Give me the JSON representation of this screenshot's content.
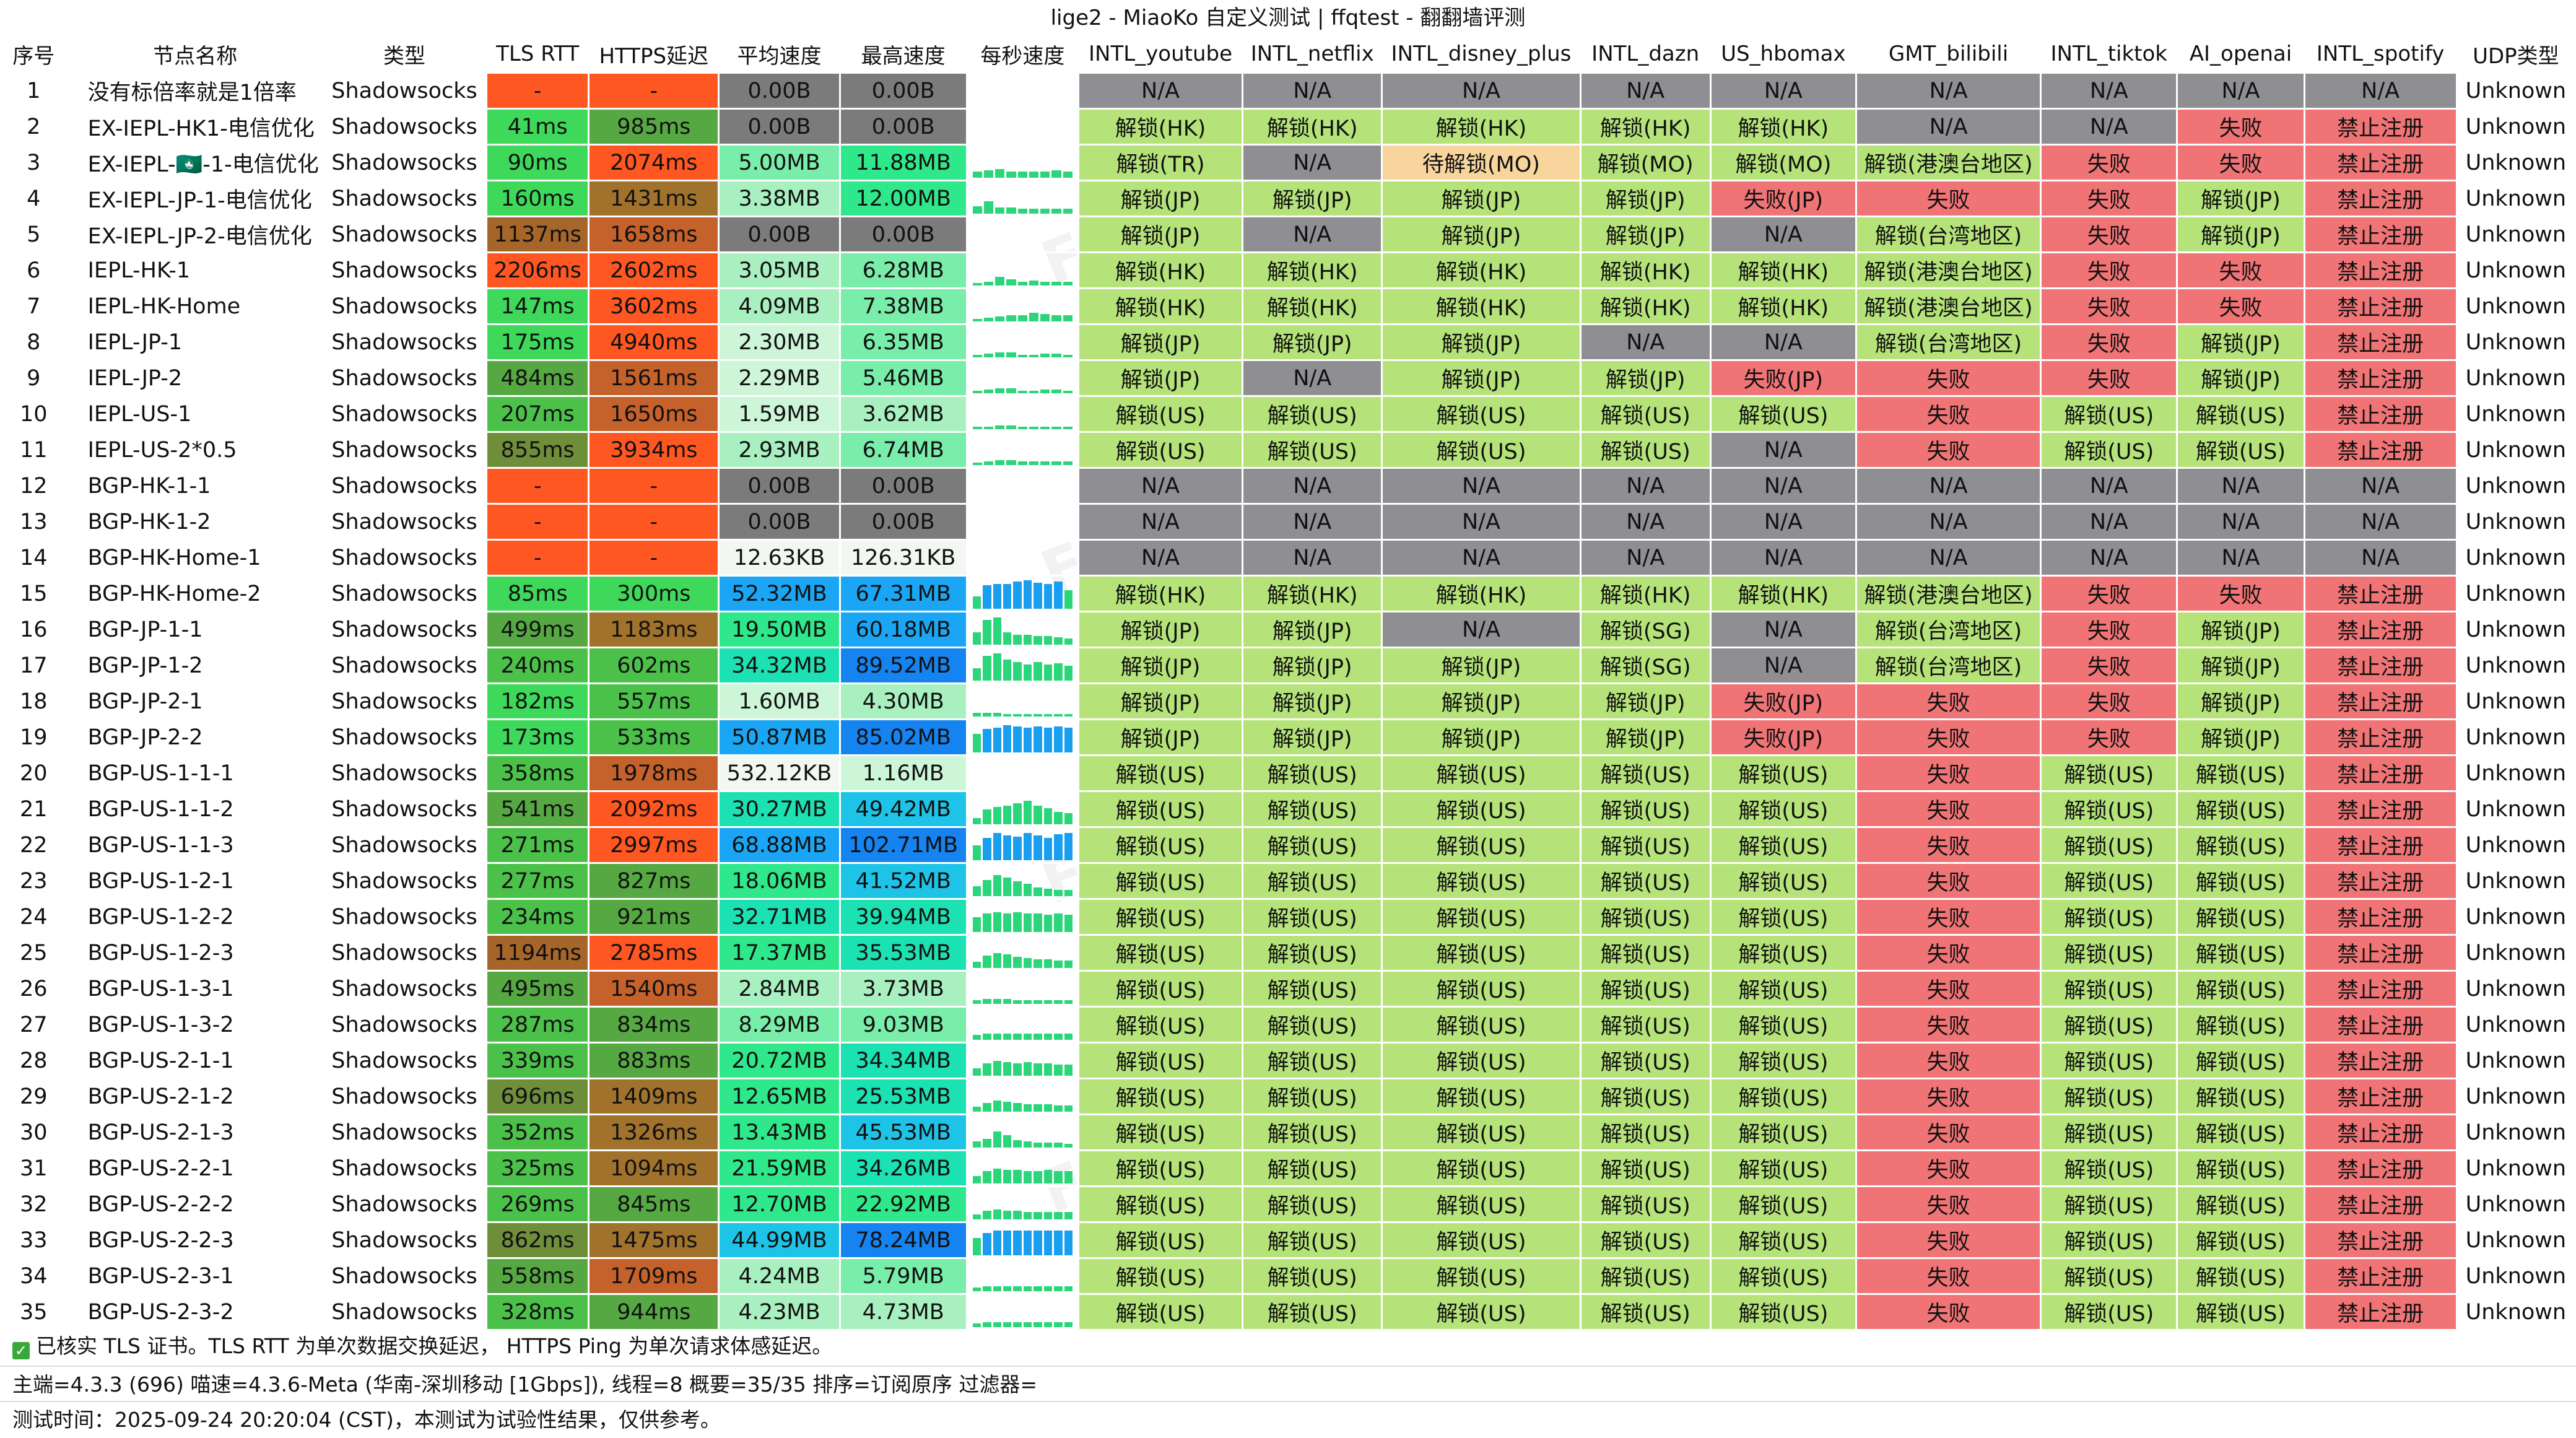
{
  "title": "lige2 - MiaoKo 自定义测试 | ffqtest - 翻翻墙评测",
  "watermark": "FFQ.LA Test Center",
  "columns": [
    "序号",
    "节点名称",
    "类型",
    "TLS RTT",
    "HTTPS延迟",
    "平均速度",
    "最高速度",
    "每秒速度",
    "INTL_youtube",
    "INTL_netflix",
    "INTL_disney_plus",
    "INTL_dazn",
    "US_hbomax",
    "GMT_bilibili",
    "INTL_tiktok",
    "AI_openai",
    "INTL_spotify",
    "UDP类型"
  ],
  "colors": {
    "unlock": "#b5e37a",
    "fail": "#f07476",
    "na": "#8e8e93",
    "pending": "#f9d59e",
    "speed_zero": "#7b7b7b",
    "rtt_dash": "#ff5722",
    "spark_green": "#2bd67b",
    "spark_blue": "#1a9ff0"
  },
  "rows": [
    {
      "id": "1",
      "name": "没有标倍率就是1倍率",
      "type": "Shadowsocks",
      "tls": "-",
      "https": "-",
      "avg": "0.00B",
      "max": "0.00B",
      "spark": [],
      "yt": "N/A",
      "nf": "N/A",
      "dp": "N/A",
      "dz": "N/A",
      "hbo": "N/A",
      "bili": "N/A",
      "tt": "N/A",
      "ai": "N/A",
      "sp": "N/A",
      "udp": "Unknown"
    },
    {
      "id": "2",
      "name": "EX-IEPL-HK1-电信优化",
      "type": "Shadowsocks",
      "tls": "41ms",
      "https": "985ms",
      "avg": "0.00B",
      "max": "0.00B",
      "spark": [],
      "yt": "解锁(HK)",
      "nf": "解锁(HK)",
      "dp": "解锁(HK)",
      "dz": "解锁(HK)",
      "hbo": "解锁(HK)",
      "bili": "N/A",
      "tt": "N/A",
      "ai": "失败",
      "sp": "禁止注册",
      "udp": "Unknown"
    },
    {
      "id": "3",
      "name": "EX-IEPL-🇲🇴-1-电信优化",
      "type": "Shadowsocks",
      "tls": "90ms",
      "https": "2074ms",
      "avg": "5.00MB",
      "max": "11.88MB",
      "spark": [
        10,
        12,
        14,
        10,
        10,
        10,
        10,
        12,
        10
      ],
      "yt": "解锁(TR)",
      "nf": "N/A",
      "dp": "待解锁(MO)",
      "dz": "解锁(MO)",
      "hbo": "解锁(MO)",
      "bili": "解锁(港澳台地区)",
      "tt": "失败",
      "ai": "失败",
      "sp": "禁止注册",
      "udp": "Unknown"
    },
    {
      "id": "4",
      "name": "EX-IEPL-JP-1-电信优化",
      "type": "Shadowsocks",
      "tls": "160ms",
      "https": "1431ms",
      "avg": "3.38MB",
      "max": "12.00MB",
      "spark": [
        12,
        20,
        10,
        10,
        8,
        8,
        8,
        8,
        8
      ],
      "yt": "解锁(JP)",
      "nf": "解锁(JP)",
      "dp": "解锁(JP)",
      "dz": "解锁(JP)",
      "hbo": "失败(JP)",
      "bili": "失败",
      "tt": "失败",
      "ai": "解锁(JP)",
      "sp": "禁止注册",
      "udp": "Unknown"
    },
    {
      "id": "5",
      "name": "EX-IEPL-JP-2-电信优化",
      "type": "Shadowsocks",
      "tls": "1137ms",
      "https": "1658ms",
      "avg": "0.00B",
      "max": "0.00B",
      "spark": [],
      "yt": "解锁(JP)",
      "nf": "N/A",
      "dp": "解锁(JP)",
      "dz": "解锁(JP)",
      "hbo": "N/A",
      "bili": "解锁(台湾地区)",
      "tt": "失败",
      "ai": "解锁(JP)",
      "sp": "禁止注册",
      "udp": "Unknown"
    },
    {
      "id": "6",
      "name": "IEPL-HK-1",
      "type": "Shadowsocks",
      "tls": "2206ms",
      "https": "2602ms",
      "avg": "3.05MB",
      "max": "6.28MB",
      "spark": [
        4,
        6,
        14,
        10,
        6,
        8,
        6,
        6,
        6
      ],
      "yt": "解锁(HK)",
      "nf": "解锁(HK)",
      "dp": "解锁(HK)",
      "dz": "解锁(HK)",
      "hbo": "解锁(HK)",
      "bili": "解锁(港澳台地区)",
      "tt": "失败",
      "ai": "失败",
      "sp": "禁止注册",
      "udp": "Unknown"
    },
    {
      "id": "7",
      "name": "IEPL-HK-Home",
      "type": "Shadowsocks",
      "tls": "147ms",
      "https": "3602ms",
      "avg": "4.09MB",
      "max": "7.38MB",
      "spark": [
        4,
        6,
        8,
        10,
        10,
        14,
        12,
        10,
        10
      ],
      "yt": "解锁(HK)",
      "nf": "解锁(HK)",
      "dp": "解锁(HK)",
      "dz": "解锁(HK)",
      "hbo": "解锁(HK)",
      "bili": "解锁(港澳台地区)",
      "tt": "失败",
      "ai": "失败",
      "sp": "禁止注册",
      "udp": "Unknown"
    },
    {
      "id": "8",
      "name": "IEPL-JP-1",
      "type": "Shadowsocks",
      "tls": "175ms",
      "https": "4940ms",
      "avg": "2.30MB",
      "max": "6.35MB",
      "spark": [
        4,
        6,
        8,
        8,
        4,
        4,
        6,
        6,
        4
      ],
      "yt": "解锁(JP)",
      "nf": "解锁(JP)",
      "dp": "解锁(JP)",
      "dz": "N/A",
      "hbo": "N/A",
      "bili": "解锁(台湾地区)",
      "tt": "失败",
      "ai": "解锁(JP)",
      "sp": "禁止注册",
      "udp": "Unknown"
    },
    {
      "id": "9",
      "name": "IEPL-JP-2",
      "type": "Shadowsocks",
      "tls": "484ms",
      "https": "1561ms",
      "avg": "2.29MB",
      "max": "5.46MB",
      "spark": [
        4,
        6,
        8,
        8,
        4,
        4,
        6,
        6,
        4
      ],
      "yt": "解锁(JP)",
      "nf": "N/A",
      "dp": "解锁(JP)",
      "dz": "解锁(JP)",
      "hbo": "失败(JP)",
      "bili": "失败",
      "tt": "失败",
      "ai": "解锁(JP)",
      "sp": "禁止注册",
      "udp": "Unknown"
    },
    {
      "id": "10",
      "name": "IEPL-US-1",
      "type": "Shadowsocks",
      "tls": "207ms",
      "https": "1650ms",
      "avg": "1.59MB",
      "max": "3.62MB",
      "spark": [
        4,
        4,
        6,
        6,
        4,
        4,
        4,
        4,
        4
      ],
      "yt": "解锁(US)",
      "nf": "解锁(US)",
      "dp": "解锁(US)",
      "dz": "解锁(US)",
      "hbo": "解锁(US)",
      "bili": "失败",
      "tt": "解锁(US)",
      "ai": "解锁(US)",
      "sp": "禁止注册",
      "udp": "Unknown"
    },
    {
      "id": "11",
      "name": "IEPL-US-2*0.5",
      "type": "Shadowsocks",
      "tls": "855ms",
      "https": "3934ms",
      "avg": "2.93MB",
      "max": "6.74MB",
      "spark": [
        4,
        6,
        8,
        8,
        6,
        6,
        6,
        6,
        6
      ],
      "yt": "解锁(US)",
      "nf": "解锁(US)",
      "dp": "解锁(US)",
      "dz": "解锁(US)",
      "hbo": "N/A",
      "bili": "失败",
      "tt": "解锁(US)",
      "ai": "解锁(US)",
      "sp": "禁止注册",
      "udp": "Unknown"
    },
    {
      "id": "12",
      "name": "BGP-HK-1-1",
      "type": "Shadowsocks",
      "tls": "-",
      "https": "-",
      "avg": "0.00B",
      "max": "0.00B",
      "spark": [],
      "yt": "N/A",
      "nf": "N/A",
      "dp": "N/A",
      "dz": "N/A",
      "hbo": "N/A",
      "bili": "N/A",
      "tt": "N/A",
      "ai": "N/A",
      "sp": "N/A",
      "udp": "Unknown"
    },
    {
      "id": "13",
      "name": "BGP-HK-1-2",
      "type": "Shadowsocks",
      "tls": "-",
      "https": "-",
      "avg": "0.00B",
      "max": "0.00B",
      "spark": [],
      "yt": "N/A",
      "nf": "N/A",
      "dp": "N/A",
      "dz": "N/A",
      "hbo": "N/A",
      "bili": "N/A",
      "tt": "N/A",
      "ai": "N/A",
      "sp": "N/A",
      "udp": "Unknown"
    },
    {
      "id": "14",
      "name": "BGP-HK-Home-1",
      "type": "Shadowsocks",
      "tls": "-",
      "https": "-",
      "avg": "12.63KB",
      "max": "126.31KB",
      "spark": [],
      "yt": "N/A",
      "nf": "N/A",
      "dp": "N/A",
      "dz": "N/A",
      "hbo": "N/A",
      "bili": "N/A",
      "tt": "N/A",
      "ai": "N/A",
      "sp": "N/A",
      "udp": "Unknown"
    },
    {
      "id": "15",
      "name": "BGP-HK-Home-2",
      "type": "Shadowsocks",
      "tls": "85ms",
      "https": "300ms",
      "avg": "52.32MB",
      "max": "67.31MB",
      "spark": [
        20,
        38,
        40,
        40,
        44,
        46,
        42,
        40,
        44,
        30
      ],
      "yt": "解锁(HK)",
      "nf": "解锁(HK)",
      "dp": "解锁(HK)",
      "dz": "解锁(HK)",
      "hbo": "解锁(HK)",
      "bili": "解锁(港澳台地区)",
      "tt": "失败",
      "ai": "失败",
      "sp": "禁止注册",
      "udp": "Unknown"
    },
    {
      "id": "16",
      "name": "BGP-JP-1-1",
      "type": "Shadowsocks",
      "tls": "499ms",
      "https": "1183ms",
      "avg": "19.50MB",
      "max": "60.18MB",
      "spark": [
        20,
        40,
        44,
        20,
        16,
        16,
        14,
        14,
        12,
        10
      ],
      "yt": "解锁(JP)",
      "nf": "解锁(JP)",
      "dp": "N/A",
      "dz": "解锁(SG)",
      "hbo": "N/A",
      "bili": "解锁(台湾地区)",
      "tt": "失败",
      "ai": "解锁(JP)",
      "sp": "禁止注册",
      "udp": "Unknown"
    },
    {
      "id": "17",
      "name": "BGP-JP-1-2",
      "type": "Shadowsocks",
      "tls": "240ms",
      "https": "602ms",
      "avg": "34.32MB",
      "max": "89.52MB",
      "spark": [
        20,
        40,
        44,
        34,
        30,
        26,
        30,
        26,
        28,
        24
      ],
      "yt": "解锁(JP)",
      "nf": "解锁(JP)",
      "dp": "解锁(JP)",
      "dz": "解锁(SG)",
      "hbo": "N/A",
      "bili": "解锁(台湾地区)",
      "tt": "失败",
      "ai": "解锁(JP)",
      "sp": "禁止注册",
      "udp": "Unknown"
    },
    {
      "id": "18",
      "name": "BGP-JP-2-1",
      "type": "Shadowsocks",
      "tls": "182ms",
      "https": "557ms",
      "avg": "1.60MB",
      "max": "4.30MB",
      "spark": [
        6,
        6,
        6,
        4,
        4,
        4,
        4,
        4,
        4,
        4
      ],
      "yt": "解锁(JP)",
      "nf": "解锁(JP)",
      "dp": "解锁(JP)",
      "dz": "解锁(JP)",
      "hbo": "失败(JP)",
      "bili": "失败",
      "tt": "失败",
      "ai": "解锁(JP)",
      "sp": "禁止注册",
      "udp": "Unknown"
    },
    {
      "id": "19",
      "name": "BGP-JP-2-2",
      "type": "Shadowsocks",
      "tls": "173ms",
      "https": "533ms",
      "avg": "50.87MB",
      "max": "85.02MB",
      "spark": [
        30,
        38,
        40,
        44,
        42,
        40,
        42,
        40,
        42,
        40
      ],
      "yt": "解锁(JP)",
      "nf": "解锁(JP)",
      "dp": "解锁(JP)",
      "dz": "解锁(JP)",
      "hbo": "失败(JP)",
      "bili": "失败",
      "tt": "失败",
      "ai": "解锁(JP)",
      "sp": "禁止注册",
      "udp": "Unknown"
    },
    {
      "id": "20",
      "name": "BGP-US-1-1-1",
      "type": "Shadowsocks",
      "tls": "358ms",
      "https": "1978ms",
      "avg": "532.12KB",
      "max": "1.16MB",
      "spark": [],
      "yt": "解锁(US)",
      "nf": "解锁(US)",
      "dp": "解锁(US)",
      "dz": "解锁(US)",
      "hbo": "解锁(US)",
      "bili": "失败",
      "tt": "解锁(US)",
      "ai": "解锁(US)",
      "sp": "禁止注册",
      "udp": "Unknown"
    },
    {
      "id": "21",
      "name": "BGP-US-1-1-2",
      "type": "Shadowsocks",
      "tls": "541ms",
      "https": "2092ms",
      "avg": "30.27MB",
      "max": "49.42MB",
      "spark": [
        10,
        24,
        28,
        30,
        34,
        38,
        30,
        26,
        20,
        18
      ],
      "yt": "解锁(US)",
      "nf": "解锁(US)",
      "dp": "解锁(US)",
      "dz": "解锁(US)",
      "hbo": "解锁(US)",
      "bili": "失败",
      "tt": "解锁(US)",
      "ai": "解锁(US)",
      "sp": "禁止注册",
      "udp": "Unknown"
    },
    {
      "id": "22",
      "name": "BGP-US-1-1-3",
      "type": "Shadowsocks",
      "tls": "271ms",
      "https": "2997ms",
      "avg": "68.88MB",
      "max": "102.71MB",
      "spark": [
        24,
        36,
        44,
        40,
        38,
        44,
        40,
        36,
        42,
        44
      ],
      "yt": "解锁(US)",
      "nf": "解锁(US)",
      "dp": "解锁(US)",
      "dz": "解锁(US)",
      "hbo": "解锁(US)",
      "bili": "失败",
      "tt": "解锁(US)",
      "ai": "解锁(US)",
      "sp": "禁止注册",
      "udp": "Unknown"
    },
    {
      "id": "23",
      "name": "BGP-US-1-2-1",
      "type": "Shadowsocks",
      "tls": "277ms",
      "https": "827ms",
      "avg": "18.06MB",
      "max": "41.52MB",
      "spark": [
        16,
        26,
        34,
        30,
        24,
        20,
        14,
        12,
        10,
        10
      ],
      "yt": "解锁(US)",
      "nf": "解锁(US)",
      "dp": "解锁(US)",
      "dz": "解锁(US)",
      "hbo": "解锁(US)",
      "bili": "失败",
      "tt": "解锁(US)",
      "ai": "解锁(US)",
      "sp": "禁止注册",
      "udp": "Unknown"
    },
    {
      "id": "24",
      "name": "BGP-US-1-2-2",
      "type": "Shadowsocks",
      "tls": "234ms",
      "https": "921ms",
      "avg": "32.71MB",
      "max": "39.94MB",
      "spark": [
        24,
        30,
        32,
        30,
        32,
        30,
        30,
        28,
        30,
        28
      ],
      "yt": "解锁(US)",
      "nf": "解锁(US)",
      "dp": "解锁(US)",
      "dz": "解锁(US)",
      "hbo": "解锁(US)",
      "bili": "失败",
      "tt": "解锁(US)",
      "ai": "解锁(US)",
      "sp": "禁止注册",
      "udp": "Unknown"
    },
    {
      "id": "25",
      "name": "BGP-US-1-2-3",
      "type": "Shadowsocks",
      "tls": "1194ms",
      "https": "2785ms",
      "avg": "17.37MB",
      "max": "35.53MB",
      "spark": [
        10,
        20,
        24,
        22,
        18,
        16,
        14,
        14,
        12,
        12
      ],
      "yt": "解锁(US)",
      "nf": "解锁(US)",
      "dp": "解锁(US)",
      "dz": "解锁(US)",
      "hbo": "解锁(US)",
      "bili": "失败",
      "tt": "解锁(US)",
      "ai": "解锁(US)",
      "sp": "禁止注册",
      "udp": "Unknown"
    },
    {
      "id": "26",
      "name": "BGP-US-1-3-1",
      "type": "Shadowsocks",
      "tls": "495ms",
      "https": "1540ms",
      "avg": "2.84MB",
      "max": "3.73MB",
      "spark": [
        6,
        8,
        8,
        8,
        6,
        6,
        6,
        6,
        6,
        6
      ],
      "yt": "解锁(US)",
      "nf": "解锁(US)",
      "dp": "解锁(US)",
      "dz": "解锁(US)",
      "hbo": "解锁(US)",
      "bili": "失败",
      "tt": "解锁(US)",
      "ai": "解锁(US)",
      "sp": "禁止注册",
      "udp": "Unknown"
    },
    {
      "id": "27",
      "name": "BGP-US-1-3-2",
      "type": "Shadowsocks",
      "tls": "287ms",
      "https": "834ms",
      "avg": "8.29MB",
      "max": "9.03MB",
      "spark": [
        8,
        10,
        10,
        10,
        10,
        10,
        10,
        10,
        10,
        10
      ],
      "yt": "解锁(US)",
      "nf": "解锁(US)",
      "dp": "解锁(US)",
      "dz": "解锁(US)",
      "hbo": "解锁(US)",
      "bili": "失败",
      "tt": "解锁(US)",
      "ai": "解锁(US)",
      "sp": "禁止注册",
      "udp": "Unknown"
    },
    {
      "id": "28",
      "name": "BGP-US-2-1-1",
      "type": "Shadowsocks",
      "tls": "339ms",
      "https": "883ms",
      "avg": "20.72MB",
      "max": "34.34MB",
      "spark": [
        12,
        20,
        24,
        22,
        20,
        22,
        20,
        20,
        18,
        18
      ],
      "yt": "解锁(US)",
      "nf": "解锁(US)",
      "dp": "解锁(US)",
      "dz": "解锁(US)",
      "hbo": "解锁(US)",
      "bili": "失败",
      "tt": "解锁(US)",
      "ai": "解锁(US)",
      "sp": "禁止注册",
      "udp": "Unknown"
    },
    {
      "id": "29",
      "name": "BGP-US-2-1-2",
      "type": "Shadowsocks",
      "tls": "696ms",
      "https": "1409ms",
      "avg": "12.65MB",
      "max": "25.53MB",
      "spark": [
        8,
        14,
        18,
        16,
        14,
        12,
        12,
        12,
        10,
        10
      ],
      "yt": "解锁(US)",
      "nf": "解锁(US)",
      "dp": "解锁(US)",
      "dz": "解锁(US)",
      "hbo": "解锁(US)",
      "bili": "失败",
      "tt": "解锁(US)",
      "ai": "解锁(US)",
      "sp": "禁止注册",
      "udp": "Unknown"
    },
    {
      "id": "30",
      "name": "BGP-US-2-1-3",
      "type": "Shadowsocks",
      "tls": "352ms",
      "https": "1326ms",
      "avg": "13.43MB",
      "max": "45.53MB",
      "spark": [
        10,
        14,
        26,
        20,
        12,
        10,
        8,
        8,
        8,
        6
      ],
      "yt": "解锁(US)",
      "nf": "解锁(US)",
      "dp": "解锁(US)",
      "dz": "解锁(US)",
      "hbo": "解锁(US)",
      "bili": "失败",
      "tt": "解锁(US)",
      "ai": "解锁(US)",
      "sp": "禁止注册",
      "udp": "Unknown"
    },
    {
      "id": "31",
      "name": "BGP-US-2-2-1",
      "type": "Shadowsocks",
      "tls": "325ms",
      "https": "1094ms",
      "avg": "21.59MB",
      "max": "34.26MB",
      "spark": [
        12,
        20,
        24,
        22,
        22,
        20,
        20,
        22,
        20,
        20
      ],
      "yt": "解锁(US)",
      "nf": "解锁(US)",
      "dp": "解锁(US)",
      "dz": "解锁(US)",
      "hbo": "解锁(US)",
      "bili": "失败",
      "tt": "解锁(US)",
      "ai": "解锁(US)",
      "sp": "禁止注册",
      "udp": "Unknown"
    },
    {
      "id": "32",
      "name": "BGP-US-2-2-2",
      "type": "Shadowsocks",
      "tls": "269ms",
      "https": "845ms",
      "avg": "12.70MB",
      "max": "22.92MB",
      "spark": [
        8,
        14,
        16,
        14,
        14,
        12,
        12,
        12,
        12,
        12
      ],
      "yt": "解锁(US)",
      "nf": "解锁(US)",
      "dp": "解锁(US)",
      "dz": "解锁(US)",
      "hbo": "解锁(US)",
      "bili": "失败",
      "tt": "解锁(US)",
      "ai": "解锁(US)",
      "sp": "禁止注册",
      "udp": "Unknown"
    },
    {
      "id": "33",
      "name": "BGP-US-2-2-3",
      "type": "Shadowsocks",
      "tls": "862ms",
      "https": "1475ms",
      "avg": "44.99MB",
      "max": "78.24MB",
      "spark": [
        28,
        36,
        40,
        40,
        40,
        40,
        40,
        40,
        40,
        40
      ],
      "yt": "解锁(US)",
      "nf": "解锁(US)",
      "dp": "解锁(US)",
      "dz": "解锁(US)",
      "hbo": "解锁(US)",
      "bili": "失败",
      "tt": "解锁(US)",
      "ai": "解锁(US)",
      "sp": "禁止注册",
      "udp": "Unknown"
    },
    {
      "id": "34",
      "name": "BGP-US-2-3-1",
      "type": "Shadowsocks",
      "tls": "558ms",
      "https": "1709ms",
      "avg": "4.24MB",
      "max": "5.79MB",
      "spark": [
        6,
        8,
        8,
        8,
        8,
        8,
        8,
        8,
        8,
        8
      ],
      "yt": "解锁(US)",
      "nf": "解锁(US)",
      "dp": "解锁(US)",
      "dz": "解锁(US)",
      "hbo": "解锁(US)",
      "bili": "失败",
      "tt": "解锁(US)",
      "ai": "解锁(US)",
      "sp": "禁止注册",
      "udp": "Unknown"
    },
    {
      "id": "35",
      "name": "BGP-US-2-3-2",
      "type": "Shadowsocks",
      "tls": "328ms",
      "https": "944ms",
      "avg": "4.23MB",
      "max": "4.73MB",
      "spark": [
        6,
        8,
        8,
        8,
        8,
        8,
        8,
        8,
        8,
        8
      ],
      "yt": "解锁(US)",
      "nf": "解锁(US)",
      "dp": "解锁(US)",
      "dz": "解锁(US)",
      "hbo": "解锁(US)",
      "bili": "失败",
      "tt": "解锁(US)",
      "ai": "解锁(US)",
      "sp": "禁止注册",
      "udp": "Unknown"
    }
  ],
  "footer": {
    "line1": "已核实 TLS 证书。TLS RTT 为单次数据交换延迟， HTTPS Ping 为单次请求体感延迟。",
    "line2": "主端=4.3.3 (696) 喵速=4.3.6-Meta (华南-深圳移动 [1Gbps]), 线程=8 概要=35/35 排序=订阅原序 过滤器=",
    "line3": "测试时间：2025-09-24 20:20:04 (CST)，本测试为试验性结果，仅供参考。"
  }
}
